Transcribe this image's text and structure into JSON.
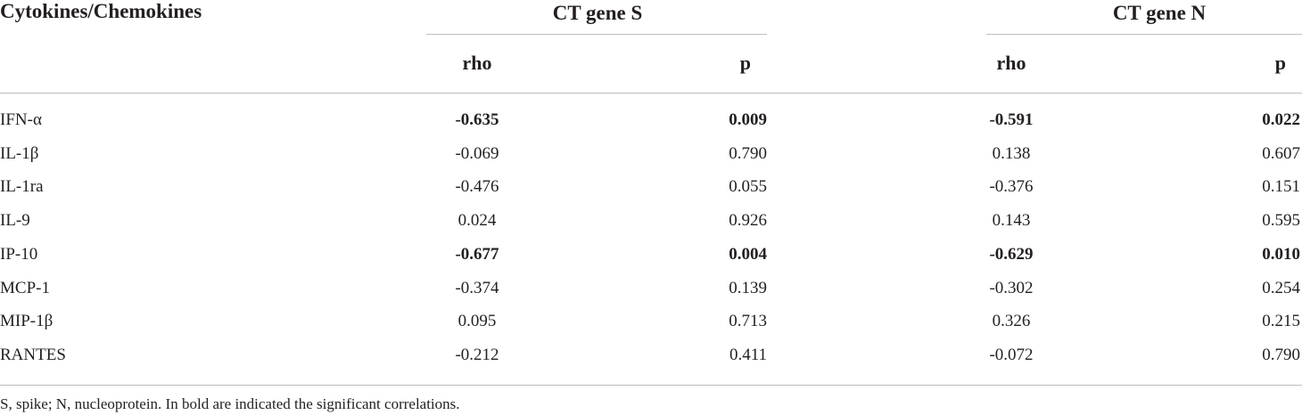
{
  "table": {
    "header": {
      "row_label": "Cytokines/Chemokines",
      "group_s": "CT gene S",
      "group_n": "CT gene N",
      "rho": "rho",
      "p": "p"
    },
    "rows": [
      {
        "name": "IFN-α",
        "s_rho": "-0.635",
        "s_p": "0.009",
        "n_rho": "-0.591",
        "n_p": "0.022",
        "s_bold": true,
        "n_bold": true
      },
      {
        "name": "IL-1β",
        "s_rho": "-0.069",
        "s_p": "0.790",
        "n_rho": "0.138",
        "n_p": "0.607",
        "s_bold": false,
        "n_bold": false
      },
      {
        "name": "IL-1ra",
        "s_rho": "-0.476",
        "s_p": "0.055",
        "n_rho": "-0.376",
        "n_p": "0.151",
        "s_bold": false,
        "n_bold": false
      },
      {
        "name": "IL-9",
        "s_rho": "0.024",
        "s_p": "0.926",
        "n_rho": "0.143",
        "n_p": "0.595",
        "s_bold": false,
        "n_bold": false
      },
      {
        "name": "IP-10",
        "s_rho": "-0.677",
        "s_p": "0.004",
        "n_rho": "-0.629",
        "n_p": "0.010",
        "s_bold": true,
        "n_bold": true
      },
      {
        "name": "MCP-1",
        "s_rho": "-0.374",
        "s_p": "0.139",
        "n_rho": "-0.302",
        "n_p": "0.254",
        "s_bold": false,
        "n_bold": false
      },
      {
        "name": "MIP-1β",
        "s_rho": "0.095",
        "s_p": "0.713",
        "n_rho": "0.326",
        "n_p": "0.215",
        "s_bold": false,
        "n_bold": false
      },
      {
        "name": "RANTES",
        "s_rho": "-0.212",
        "s_p": "0.411",
        "n_rho": "-0.072",
        "n_p": "0.790",
        "s_bold": false,
        "n_bold": false
      }
    ],
    "footnote": "S, spike; N, nucleoprotein. In bold are indicated the significant correlations."
  }
}
